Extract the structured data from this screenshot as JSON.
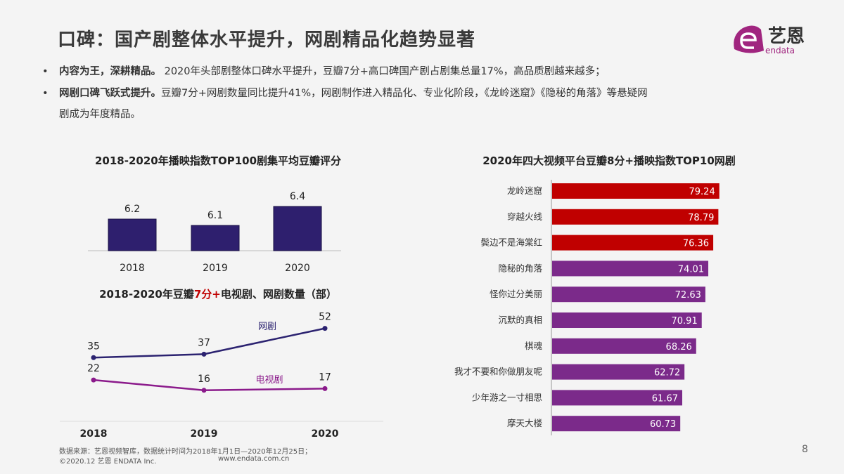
{
  "title": "口碑：国产剧整体水平提升，网剧精品化趋势显著",
  "bullets": [
    {
      "bold": "内容为王，深耕精品。",
      "text": "2020年头部剧整体口碑水平提升，豆瓣7分+高口碑国产剧占剧集总量17%，高品质剧越来越多；"
    },
    {
      "bold": "网剧口碑飞跃式提升。",
      "text": "豆瓣7分+网剧数量同比提升41%，网剧制作进入精品化、专业化阶段，《龙岭迷窟》《隐秘的角落》等悬疑网",
      "text2": "剧成为年度精品。"
    }
  ],
  "logo": {
    "text": "艺恩",
    "sub": "endata",
    "color": "#a0257f"
  },
  "chart_data": [
    {
      "type": "bar",
      "title": "2018-2020年播映指数TOP100剧集平均豆瓣评分",
      "categories": [
        "2018",
        "2019",
        "2020"
      ],
      "values": [
        6.2,
        6.1,
        6.4
      ],
      "color": "#2e1f6e"
    },
    {
      "type": "line",
      "title_parts": [
        "2018-2020年豆瓣",
        "7分+",
        "电视剧、网剧数量（部）"
      ],
      "title_highlight_color": "#c00000",
      "x": [
        "2018",
        "2019",
        "2020"
      ],
      "series": [
        {
          "name": "网剧",
          "values": [
            35,
            37,
            52
          ],
          "color": "#2b2270"
        },
        {
          "name": "电视剧",
          "values": [
            22,
            16,
            17
          ],
          "color": "#8b1a8b"
        }
      ]
    },
    {
      "type": "bar",
      "orientation": "horizontal",
      "title": "2020年四大视频平台豆瓣8分+播映指数TOP10网剧",
      "categories": [
        "龙岭迷窟",
        "穿越火线",
        "鬓边不是海棠红",
        "隐秘的角落",
        "怪你过分美丽",
        "沉默的真相",
        "棋魂",
        "我才不要和你做朋友呢",
        "少年游之一寸相思",
        "摩天大楼"
      ],
      "values": [
        79.24,
        78.79,
        76.36,
        74.01,
        72.63,
        70.91,
        68.26,
        62.72,
        61.67,
        60.73
      ],
      "colors": {
        "top3": "#c00000",
        "rest": "#7b2a8a"
      }
    }
  ],
  "footer": {
    "source": "数据来源：艺恩视频智库，数据统计时间为2018年1月1日—2020年12月25日；",
    "copyright": "©2020.12 艺恩 ENDATA Inc.",
    "url": "www.endata.com.cn",
    "page": "8"
  }
}
